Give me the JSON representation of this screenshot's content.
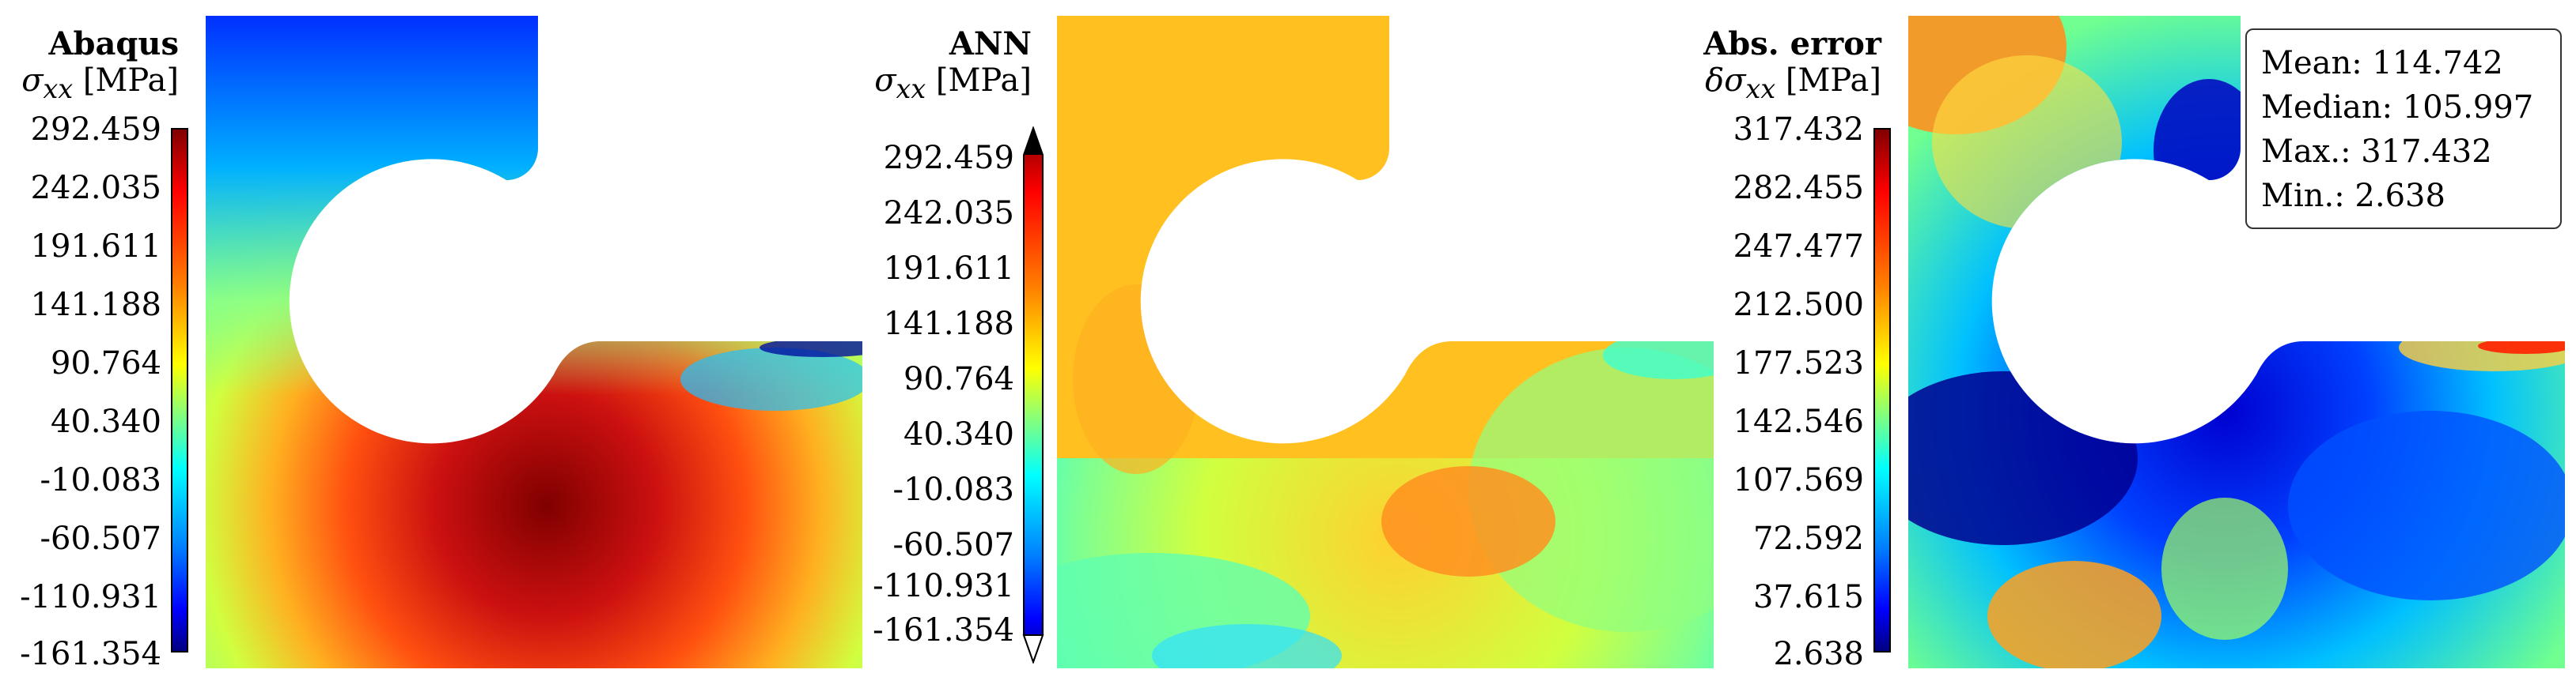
{
  "panels": [
    {
      "title": "Abaqus",
      "quantity_symbol": "σ",
      "quantity_subscript": "xx",
      "quantity_unit": "[MPa]",
      "ticks": [
        "292.459",
        "242.035",
        "191.611",
        "141.188",
        "90.764",
        "40.340",
        "-10.083",
        "-60.507",
        "-110.931",
        "-161.354"
      ]
    },
    {
      "title": "ANN",
      "quantity_symbol": "σ",
      "quantity_subscript": "xx",
      "quantity_unit": "[MPa]",
      "ticks": [
        "292.459",
        "242.035",
        "191.611",
        "141.188",
        "90.764",
        "40.340",
        "-10.083",
        "-60.507",
        "-110.931",
        "-161.354"
      ]
    },
    {
      "title": "Abs. error",
      "quantity_symbol": "δσ",
      "quantity_subscript": "xx",
      "quantity_unit": "[MPa]",
      "ticks": [
        "317.432",
        "282.455",
        "247.477",
        "212.500",
        "177.523",
        "142.546",
        "107.569",
        "72.592",
        "37.615",
        "2.638"
      ]
    }
  ],
  "stats": {
    "mean": "Mean: 114.742",
    "median": "Median: 105.997",
    "max": "Max.: 317.432",
    "min": "Min.: 2.638"
  },
  "colormap": "jet"
}
